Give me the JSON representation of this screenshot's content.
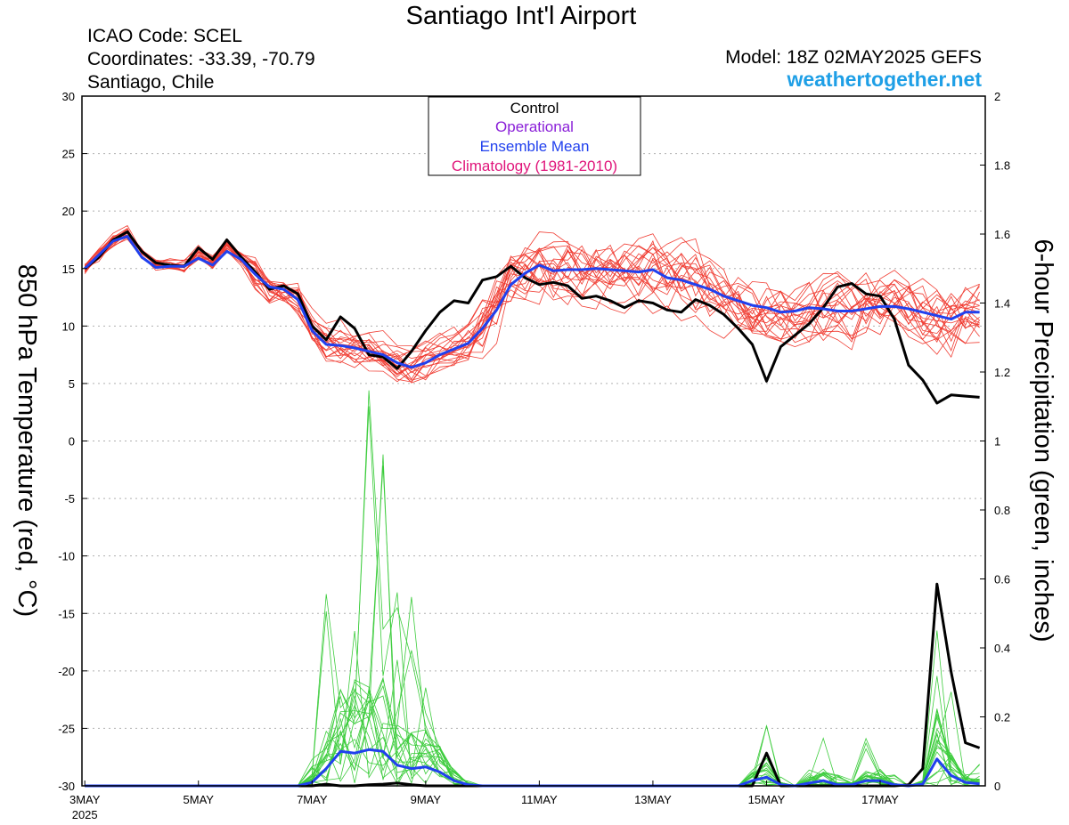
{
  "header": {
    "title": "Santiago Int'l Airport",
    "icao": "ICAO Code: SCEL",
    "coordinates": "Coordinates: -33.39, -70.79",
    "location": "Santiago, Chile",
    "model": "Model: 18Z 02MAY2025 GEFS",
    "site": "weathertogether.net"
  },
  "colors": {
    "members_temp": "#f03c32",
    "members_precip": "#3ccc3c",
    "control": "#000000",
    "operational": "#8a1fd8",
    "ensemble_mean": "#2040ee",
    "climatology": "#e0147a",
    "site": "#1e9fe6"
  },
  "chart_data": {
    "type": "line",
    "title": "Santiago Int'l Airport",
    "ylabel_left": "850 hPa Temperature (red, °C)",
    "ylabel_right": "6-hour Precipitation (green, inches)",
    "ylim_left": [
      -30,
      30
    ],
    "ylim_right": [
      0,
      2
    ],
    "yticks_left": [
      "30",
      "25",
      "20",
      "15",
      "10",
      "5",
      "0",
      "-5",
      "-10",
      "-15",
      "-20",
      "-25",
      "-30"
    ],
    "yticks_right": [
      "2",
      "1.8",
      "1.6",
      "1.4",
      "1.2",
      "1",
      "0.8",
      "0.6",
      "0.4",
      "0.2",
      "0"
    ],
    "xticks": [
      {
        "label": "3MAY",
        "sub": "2025",
        "day": 0
      },
      {
        "label": "5MAY",
        "day": 2
      },
      {
        "label": "7MAY",
        "day": 4
      },
      {
        "label": "9MAY",
        "day": 6
      },
      {
        "label": "11MAY",
        "day": 8
      },
      {
        "label": "13MAY",
        "day": 10
      },
      {
        "label": "15MAY",
        "day": 12
      },
      {
        "label": "17MAY",
        "day": 14
      }
    ],
    "x_range_days": [
      -0.05,
      15.85
    ],
    "x_step_days": 0.25,
    "legend": {
      "position": "top-center",
      "entries": [
        {
          "label": "Control",
          "color": "#000000"
        },
        {
          "label": "Operational",
          "color": "#8a1fd8"
        },
        {
          "label": "Ensemble Mean",
          "color": "#2040ee"
        },
        {
          "label": "Climatology (1981-2010)",
          "color": "#e0147a"
        }
      ]
    },
    "grid": "horizontal dotted",
    "series": [
      {
        "name": "Control",
        "kind": "temperature",
        "values": [
          15,
          16,
          17.5,
          18.2,
          16.5,
          15.5,
          15.3,
          15.2,
          16.8,
          15.8,
          17.5,
          16,
          14.7,
          13.2,
          13.5,
          12.8,
          10,
          8.8,
          10.8,
          9.8,
          7.5,
          7.3,
          6.3,
          7.8,
          9.6,
          11.2,
          12.2,
          12,
          14,
          14.3,
          15.2,
          14.2,
          13.6,
          13.8,
          13.5,
          12.4,
          12.6,
          12.2,
          11.6,
          12.2,
          12,
          11.4,
          11.2,
          12.3,
          11.8,
          11,
          9.8,
          8.4,
          5.2,
          8.2,
          9.2,
          10.2,
          11.6,
          13.4,
          13.7,
          12.8,
          12.6,
          10.6,
          6.6,
          5.3,
          3.3,
          4,
          3.9,
          3.8
        ]
      },
      {
        "name": "Ensemble Mean",
        "kind": "temperature",
        "values": [
          15,
          16.2,
          17.4,
          17.8,
          16,
          15.1,
          15.2,
          15.2,
          15.9,
          15.3,
          16.5,
          15.8,
          14.5,
          13.4,
          13.2,
          12.3,
          9.6,
          8.4,
          8.3,
          8.1,
          7.8,
          7.5,
          6.8,
          6.4,
          6.8,
          7.5,
          8,
          8.5,
          9.8,
          11.4,
          13.6,
          14.6,
          15.3,
          14.8,
          14.9,
          14.9,
          15,
          14.9,
          14.8,
          14.7,
          14.9,
          14.2,
          14,
          13.6,
          13.2,
          12.6,
          12.2,
          11.8,
          11.6,
          11.2,
          11.3,
          11.6,
          11.5,
          11.3,
          11.3,
          11.5,
          11.7,
          11.7,
          11.5,
          11.2,
          10.9,
          10.6,
          11.2,
          11.2
        ]
      },
      {
        "name": "Control",
        "kind": "precipitation",
        "values": [
          0,
          0,
          0,
          0,
          0,
          0,
          0,
          0,
          0,
          0,
          0,
          0,
          0,
          0,
          0,
          0,
          0,
          0.005,
          0,
          0,
          0.003,
          0.005,
          0.008,
          0.003,
          0,
          0,
          0,
          0,
          0,
          0,
          0,
          0,
          0,
          0,
          0,
          0,
          0,
          0,
          0,
          0,
          0,
          0,
          0,
          0,
          0,
          0,
          0,
          0,
          0.095,
          0,
          0,
          0,
          0,
          0,
          0,
          0,
          0,
          0,
          0.003,
          0.05,
          0.585,
          0.33,
          0.125,
          0.11
        ]
      },
      {
        "name": "Ensemble Mean",
        "kind": "precipitation",
        "values": [
          0,
          0,
          0,
          0,
          0,
          0,
          0,
          0,
          0,
          0,
          0,
          0,
          0,
          0,
          0,
          0,
          0.01,
          0.05,
          0.1,
          0.095,
          0.105,
          0.1,
          0.06,
          0.05,
          0.055,
          0.04,
          0.015,
          0.003,
          0,
          0,
          0,
          0,
          0,
          0,
          0,
          0,
          0,
          0,
          0,
          0,
          0,
          0,
          0,
          0,
          0,
          0,
          0,
          0.015,
          0.025,
          0.003,
          0,
          0.008,
          0.015,
          0.003,
          0.003,
          0.015,
          0.015,
          0.003,
          0,
          0.005,
          0.078,
          0.03,
          0.01,
          0.006
        ]
      }
    ]
  }
}
